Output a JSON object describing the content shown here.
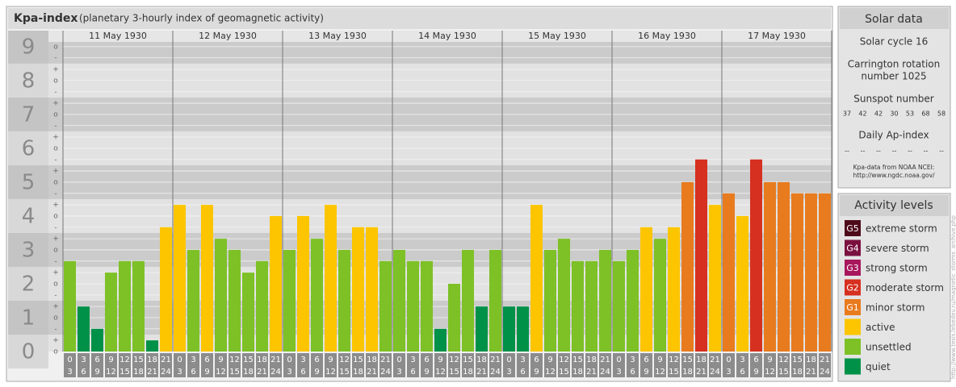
{
  "chart_data": {
    "type": "bar",
    "title": "Kpa-index",
    "subtitle": "(planetary 3-hourly index of geomagnetic activity)",
    "ylim": [
      0,
      9.14
    ],
    "yticks": [
      0,
      1,
      2,
      3,
      4,
      5,
      6,
      7,
      8,
      9
    ],
    "minor_ticks": [
      {
        "value": 0,
        "label": "o"
      },
      {
        "value": 0.33,
        "label": "+"
      },
      {
        "value": 0.67,
        "label": "-"
      },
      {
        "value": 1,
        "label": "o"
      },
      {
        "value": 1.33,
        "label": "+"
      },
      {
        "value": 1.67,
        "label": "-"
      },
      {
        "value": 2,
        "label": "o"
      },
      {
        "value": 2.33,
        "label": "+"
      },
      {
        "value": 2.67,
        "label": "-"
      },
      {
        "value": 3,
        "label": "o"
      },
      {
        "value": 3.33,
        "label": "+"
      },
      {
        "value": 3.67,
        "label": "-"
      },
      {
        "value": 4,
        "label": "o"
      },
      {
        "value": 4.33,
        "label": "+"
      },
      {
        "value": 4.67,
        "label": "-"
      },
      {
        "value": 5,
        "label": "o"
      },
      {
        "value": 5.33,
        "label": "+"
      },
      {
        "value": 5.67,
        "label": "-"
      },
      {
        "value": 6,
        "label": "o"
      },
      {
        "value": 6.33,
        "label": "+"
      },
      {
        "value": 6.67,
        "label": "-"
      },
      {
        "value": 7,
        "label": "o"
      },
      {
        "value": 7.33,
        "label": "+"
      },
      {
        "value": 7.67,
        "label": "-"
      },
      {
        "value": 8,
        "label": "o"
      },
      {
        "value": 8.33,
        "label": "+"
      },
      {
        "value": 8.67,
        "label": "-"
      },
      {
        "value": 9,
        "label": "o"
      }
    ],
    "hours": [
      [
        "0",
        "3"
      ],
      [
        "3",
        "6"
      ],
      [
        "6",
        "9"
      ],
      [
        "9",
        "12"
      ],
      [
        "12",
        "15"
      ],
      [
        "15",
        "18"
      ],
      [
        "18",
        "21"
      ],
      [
        "21",
        "24"
      ]
    ],
    "series": [
      {
        "name": "11 May 1930",
        "values": [
          2.67,
          1.33,
          0.67,
          2.33,
          2.67,
          2.67,
          0.33,
          3.67
        ],
        "colors": [
          "#7dc126",
          "#009148",
          "#009148",
          "#7dc126",
          "#7dc126",
          "#7dc126",
          "#009148",
          "#fcc500"
        ]
      },
      {
        "name": "12 May 1930",
        "values": [
          4.33,
          3,
          4.33,
          3.33,
          3,
          2.33,
          2.67,
          4
        ],
        "colors": [
          "#fcc500",
          "#7dc126",
          "#fcc500",
          "#7dc126",
          "#7dc126",
          "#7dc126",
          "#7dc126",
          "#fcc500"
        ]
      },
      {
        "name": "13 May 1930",
        "values": [
          3,
          4,
          3.33,
          4.33,
          3,
          3.67,
          3.67,
          2.67
        ],
        "colors": [
          "#7dc126",
          "#fcc500",
          "#7dc126",
          "#fcc500",
          "#7dc126",
          "#fcc500",
          "#fcc500",
          "#7dc126"
        ]
      },
      {
        "name": "14 May 1930",
        "values": [
          3,
          2.67,
          2.67,
          0.67,
          2,
          3,
          1.33,
          3
        ],
        "colors": [
          "#7dc126",
          "#7dc126",
          "#7dc126",
          "#009148",
          "#7dc126",
          "#7dc126",
          "#009148",
          "#7dc126"
        ]
      },
      {
        "name": "15 May 1930",
        "values": [
          1.33,
          1.33,
          4.33,
          3,
          3.33,
          2.67,
          2.67,
          3
        ],
        "colors": [
          "#009148",
          "#009148",
          "#fcc500",
          "#7dc126",
          "#7dc126",
          "#7dc126",
          "#7dc126",
          "#7dc126"
        ]
      },
      {
        "name": "16 May 1930",
        "values": [
          2.67,
          3,
          3.67,
          3.33,
          3.67,
          5,
          5.67,
          4.33
        ],
        "colors": [
          "#7dc126",
          "#7dc126",
          "#fcc500",
          "#7dc126",
          "#fcc500",
          "#e87b1e",
          "#d63020",
          "#fcc500"
        ]
      },
      {
        "name": "17 May 1930",
        "values": [
          4.67,
          4,
          5.67,
          5,
          5,
          4.67,
          4.67,
          4.67
        ],
        "colors": [
          "#e87b1e",
          "#fcc500",
          "#d63020",
          "#e87b1e",
          "#e87b1e",
          "#e87b1e",
          "#e87b1e",
          "#e87b1e"
        ]
      }
    ]
  },
  "solar": {
    "title": "Solar data",
    "cycle": "Solar cycle 16",
    "carrington": [
      "Carrington rotation",
      "number 1025"
    ],
    "sunspot_title": "Sunspot number",
    "sunspots": [
      37,
      42,
      42,
      30,
      53,
      68,
      58
    ],
    "ap_title": "Daily Ap-index",
    "ap": [
      "--",
      "--",
      "--",
      "--",
      "--",
      "--",
      "--"
    ],
    "source": [
      "Kpa-data from NOAA NCEI:",
      "http://www.ngdc.noaa.gov/"
    ]
  },
  "levels": {
    "title": "Activity levels",
    "items": [
      {
        "code": "G5",
        "name": "extreme storm",
        "color": "#4d0a1a"
      },
      {
        "code": "G4",
        "name": "severe storm",
        "color": "#7a1040"
      },
      {
        "code": "G3",
        "name": "strong storm",
        "color": "#a8175e"
      },
      {
        "code": "G2",
        "name": "moderate storm",
        "color": "#d63020"
      },
      {
        "code": "G1",
        "name": "minor storm",
        "color": "#e87b1e"
      },
      {
        "name": "active",
        "color": "#fcc500"
      },
      {
        "name": "unsettled",
        "color": "#7dc126"
      },
      {
        "name": "quiet",
        "color": "#009148"
      }
    ]
  },
  "watermark": "http://www.tesis.lebedev.ru/magnetic_storms_archive.php"
}
